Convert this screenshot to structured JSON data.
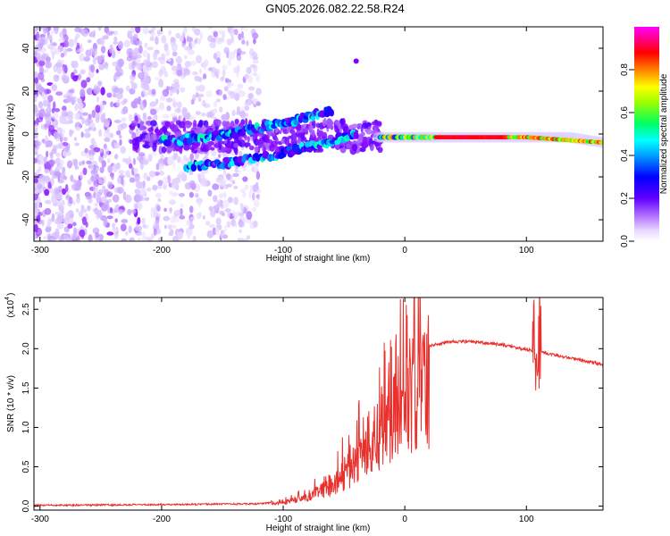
{
  "title": "GN05.2026.082.22.58.R24",
  "chart_data": [
    {
      "type": "heatmap",
      "name": "spectrogram",
      "xlabel": "Height of straight line (km)",
      "ylabel": "Frequency (Hz)",
      "xlim": [
        -305,
        163
      ],
      "ylim": [
        -50,
        50
      ],
      "xticks": [
        -300,
        -200,
        -100,
        0,
        100
      ],
      "yticks": [
        -40,
        -20,
        0,
        20,
        40
      ],
      "colorbar": {
        "label": "Normalized spectral amplitude",
        "range": [
          0,
          1
        ],
        "ticks": [
          0.0,
          0.2,
          0.4,
          0.6,
          0.8
        ],
        "colormap": [
          "#ffffff",
          "#c8a8ff",
          "#8000ff",
          "#0000ff",
          "#00ffff",
          "#00ff00",
          "#ffff00",
          "#ff8000",
          "#ff0000",
          "#ff00ff"
        ]
      },
      "features": [
        {
          "name": "main carrier",
          "x": [
            0,
            163
          ],
          "freq_start": -1,
          "freq_end": -4,
          "amplitude": 1.0
        },
        {
          "name": "upper branch",
          "x": [
            -200,
            -60
          ],
          "freq_start": -3,
          "freq_end": 11,
          "amplitude": 0.45
        },
        {
          "name": "lower branch",
          "x": [
            -180,
            -40
          ],
          "freq_start": -15,
          "freq_end": 0,
          "amplitude": 0.45
        },
        {
          "name": "noise region",
          "x": [
            -305,
            -130
          ],
          "freq_range": [
            -50,
            50
          ],
          "amplitude": 0.15
        }
      ]
    },
    {
      "type": "line",
      "name": "snr",
      "xlabel": "Height of straight line (km)",
      "ylabel": "SNR (10 * v/v)",
      "yscale_label": "(x10",
      "yscale_exp": "4",
      "xlim": [
        -305,
        163
      ],
      "ylim": [
        -0.05,
        2.65
      ],
      "xticks": [
        -300,
        -200,
        -100,
        0,
        100
      ],
      "yticks": [
        "0.0",
        "0.5",
        "1.0",
        "1.5",
        "2.0",
        "2.5"
      ],
      "color": "#e8302c",
      "series": [
        {
          "name": "SNR",
          "x": [
            -305,
            -200,
            -120,
            -100,
            -80,
            -60,
            -50,
            -40,
            -30,
            -20,
            -10,
            0,
            10,
            20,
            30,
            40,
            50,
            60,
            70,
            80,
            90,
            100,
            105,
            108,
            110,
            115,
            120,
            130,
            140,
            150,
            163
          ],
          "values": [
            0.01,
            0.02,
            0.03,
            0.06,
            0.15,
            0.35,
            0.55,
            0.75,
            1.0,
            1.3,
            1.6,
            1.85,
            1.95,
            2.03,
            2.07,
            2.09,
            2.09,
            2.08,
            2.07,
            2.05,
            2.02,
            1.99,
            1.97,
            1.95,
            1.97,
            1.95,
            1.93,
            1.9,
            1.87,
            1.84,
            1.8
          ]
        }
      ]
    }
  ]
}
